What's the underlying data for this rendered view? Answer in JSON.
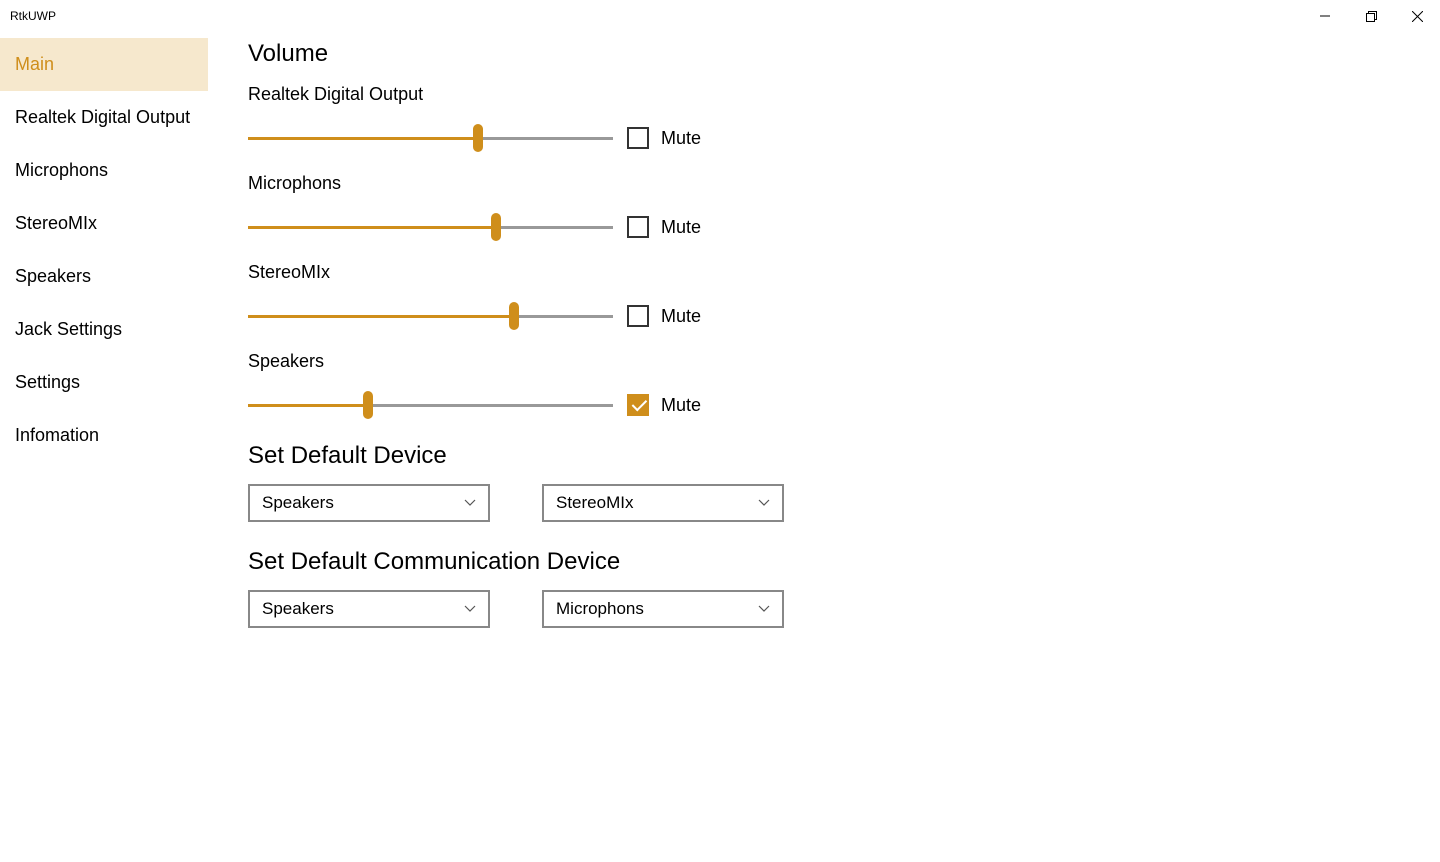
{
  "colors": {
    "accent": "#cf8e1b",
    "nav_active_bg": "#f6e8cd",
    "track_gray": "#999999",
    "border_gray": "#888888"
  },
  "window": {
    "title": "RtkUWP"
  },
  "nav": {
    "items": [
      {
        "id": "main",
        "label": "Main",
        "active": true
      },
      {
        "id": "rdo",
        "label": "Realtek Digital Output",
        "active": false
      },
      {
        "id": "mic",
        "label": "Microphons",
        "active": false
      },
      {
        "id": "smix",
        "label": "StereoMIx",
        "active": false
      },
      {
        "id": "spk",
        "label": "Speakers",
        "active": false
      },
      {
        "id": "jack",
        "label": "Jack Settings",
        "active": false
      },
      {
        "id": "settings",
        "label": "Settings",
        "active": false
      },
      {
        "id": "info",
        "label": "Infomation",
        "active": false
      }
    ]
  },
  "volume": {
    "heading": "Volume",
    "mute_label": "Mute",
    "channels": [
      {
        "name": "Realtek Digital Output",
        "value": 63,
        "muted": false
      },
      {
        "name": "Microphons",
        "value": 68,
        "muted": false
      },
      {
        "name": "StereoMIx",
        "value": 73,
        "muted": false
      },
      {
        "name": "Speakers",
        "value": 33,
        "muted": true
      }
    ]
  },
  "default_device": {
    "heading": "Set Default Device",
    "output": "Speakers",
    "input": "StereoMIx"
  },
  "default_comm": {
    "heading": "Set Default Communication Device",
    "output": "Speakers",
    "input": "Microphons"
  }
}
